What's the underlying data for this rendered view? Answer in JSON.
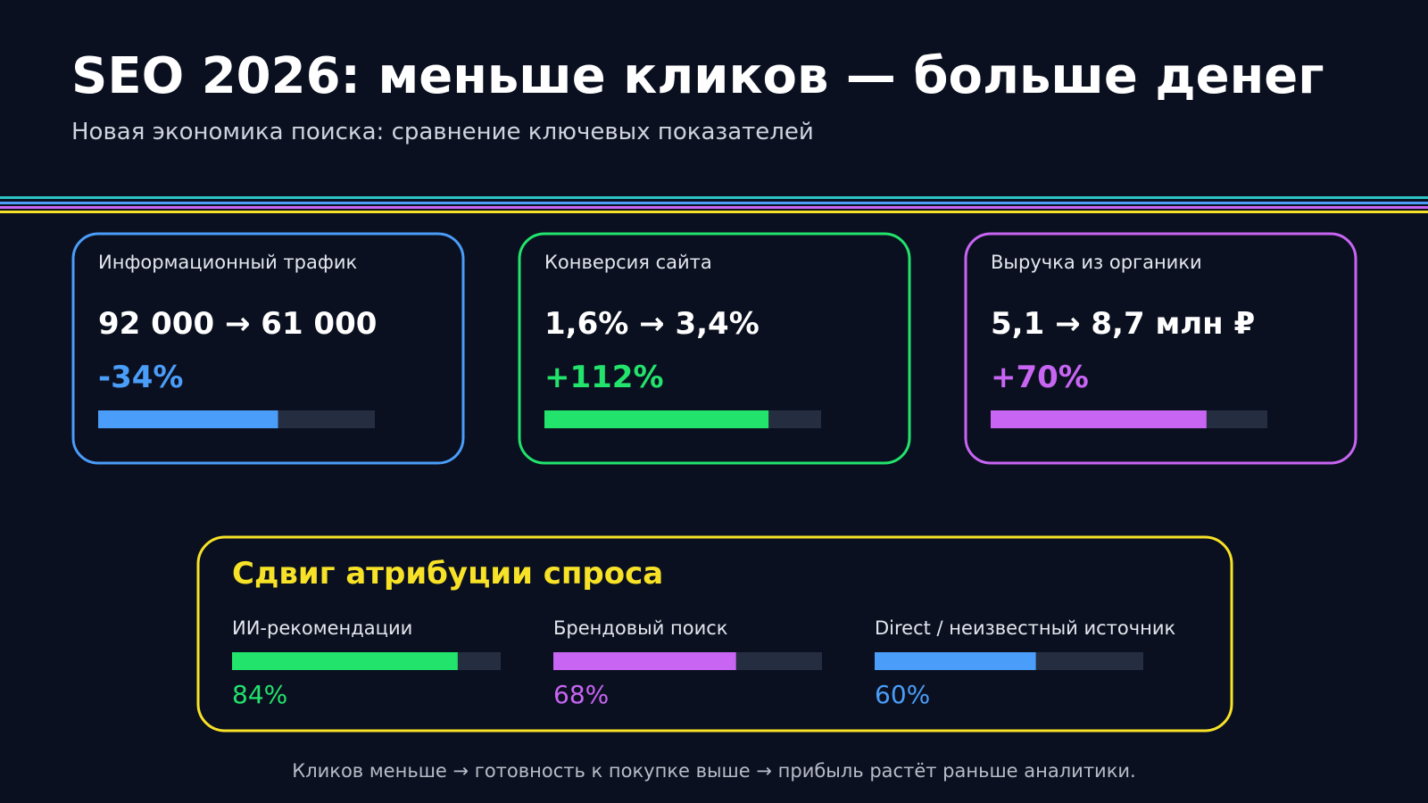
{
  "header": {
    "title": "SEO 2026: меньше кликов — больше денег",
    "subtitle": "Новая экономика поиска: сравнение ключевых показателей"
  },
  "bar_range": [
    0,
    100
  ],
  "cards": [
    {
      "label": "Информационный трафик",
      "value": "92 000 → 61 000",
      "change": "-34%",
      "color": "#4a9df8",
      "progress": 65
    },
    {
      "label": "Конверсия сайта",
      "value": "1,6% → 3,4%",
      "change": "+112%",
      "color": "#22e36b",
      "progress": 81
    },
    {
      "label": "Выручка из органики",
      "value": "5,1 → 8,7 млн ₽",
      "change": "+70%",
      "color": "#c865f3",
      "progress": 78
    }
  ],
  "attribution": {
    "title": "Сдвиг атрибуции спроса",
    "color": "#f7e227",
    "items": [
      {
        "label": "ИИ-рекомендации",
        "value": 84,
        "value_label": "84%",
        "color": "#22e36b"
      },
      {
        "label": "Брендовый поиск",
        "value": 68,
        "value_label": "68%",
        "color": "#c865f3"
      },
      {
        "label": "Direct / неизвестный источник",
        "value": 60,
        "value_label": "60%",
        "color": "#4a9df8"
      }
    ]
  },
  "footer": "Кликов меньше → готовность к покупке выше → прибыль растёт раньше аналитики."
}
